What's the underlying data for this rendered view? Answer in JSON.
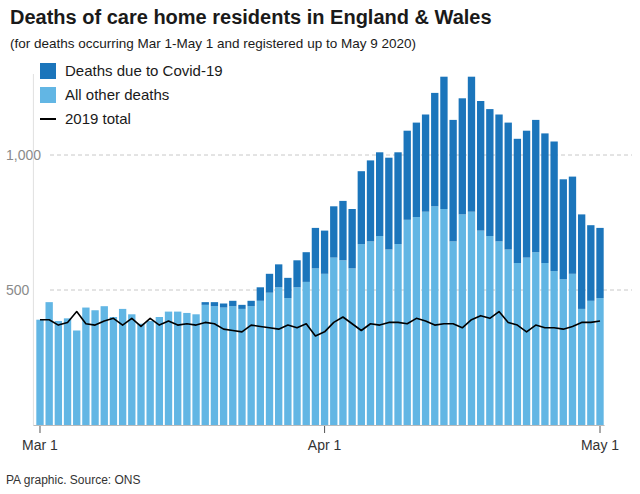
{
  "chart_data": {
    "type": "bar",
    "title": "Deaths of care home residents in England & Wales",
    "subtitle": "(for deaths occurring Mar 1-May 1 and registered up to May 9 2020)",
    "source": "PA graphic. Source: ONS",
    "stacked": true,
    "grid": true,
    "legend": "top-left",
    "categories": [
      "Mar 1",
      null,
      null,
      null,
      null,
      null,
      null,
      null,
      null,
      null,
      null,
      null,
      null,
      null,
      null,
      null,
      null,
      null,
      null,
      null,
      null,
      null,
      null,
      null,
      null,
      null,
      null,
      null,
      null,
      null,
      null,
      "Apr 1",
      null,
      null,
      null,
      null,
      null,
      null,
      null,
      null,
      null,
      null,
      null,
      null,
      null,
      null,
      null,
      null,
      null,
      null,
      null,
      null,
      null,
      null,
      null,
      null,
      null,
      null,
      null,
      null,
      null,
      "May 1"
    ],
    "ylim": [
      0,
      1300
    ],
    "yticks": [
      500,
      {
        "value": 1000,
        "label": "1,000"
      }
    ],
    "series": [
      {
        "name": "Deaths due to Covid-19",
        "type": "bar",
        "color": "#1b75bb",
        "values": [
          0,
          0,
          0,
          0,
          0,
          0,
          0,
          0,
          0,
          0,
          0,
          0,
          0,
          0,
          0,
          0,
          0,
          0,
          10,
          15,
          15,
          20,
          15,
          20,
          50,
          70,
          85,
          75,
          100,
          110,
          150,
          160,
          190,
          220,
          220,
          270,
          300,
          310,
          340,
          340,
          330,
          350,
          360,
          420,
          490,
          450,
          430,
          500,
          480,
          470,
          470,
          470,
          460,
          470,
          490,
          480,
          480,
          370,
          360,
          350,
          280,
          260
        ]
      },
      {
        "name": "All other deaths",
        "type": "bar",
        "color": "#62b6e4",
        "values": [
          390,
          455,
          385,
          395,
          350,
          435,
          425,
          440,
          400,
          430,
          410,
          375,
          385,
          400,
          420,
          420,
          415,
          410,
          445,
          440,
          435,
          440,
          430,
          440,
          460,
          490,
          510,
          470,
          510,
          530,
          580,
          560,
          620,
          610,
          580,
          670,
          680,
          700,
          650,
          670,
          760,
          770,
          790,
          810,
          800,
          680,
          780,
          790,
          720,
          700,
          680,
          650,
          600,
          620,
          640,
          600,
          570,
          540,
          560,
          430,
          460,
          470
        ]
      },
      {
        "name": "2019 total",
        "type": "line",
        "color": "#000000",
        "values": [
          390,
          390,
          370,
          380,
          420,
          375,
          370,
          385,
          395,
          370,
          395,
          365,
          395,
          370,
          385,
          370,
          375,
          370,
          380,
          375,
          355,
          350,
          345,
          370,
          365,
          360,
          355,
          370,
          360,
          375,
          330,
          345,
          380,
          400,
          375,
          350,
          375,
          370,
          380,
          380,
          375,
          395,
          385,
          370,
          375,
          375,
          360,
          390,
          405,
          395,
          420,
          380,
          370,
          345,
          370,
          360,
          360,
          355,
          365,
          380,
          380,
          385
        ]
      }
    ]
  }
}
